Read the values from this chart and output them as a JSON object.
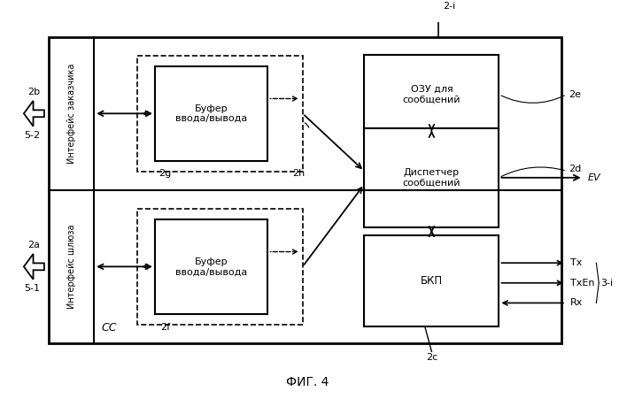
{
  "fig_title": "ФИГ. 4",
  "cc_label": "CC",
  "label_2i": "2-i",
  "label_2b": "2b",
  "label_2a": "2a",
  "label_5_2": "5-2",
  "label_5_1": "5-1",
  "label_2g": "2g",
  "label_2f": "2f",
  "label_2h": "2h",
  "label_2e": "2e",
  "label_2d": "2d",
  "label_2c": "2c",
  "label_3i": "3-i",
  "label_EV": "EV",
  "label_Tx": "Tx",
  "label_TxEn": "TxEn",
  "label_Rx": "Rx",
  "buf_top_label": "Буфер\nввода/вывода",
  "buf_bot_label": "Буфер\nввода/вывода",
  "ozu_label": "ОЗУ для\nсообщений",
  "disp_label": "Диспетчер\nсообщений",
  "bkp_label": "БКП",
  "intf_zakaz_label": "Интерфейс заказчика",
  "intf_shluz_label": "Интерфейс шлюза"
}
